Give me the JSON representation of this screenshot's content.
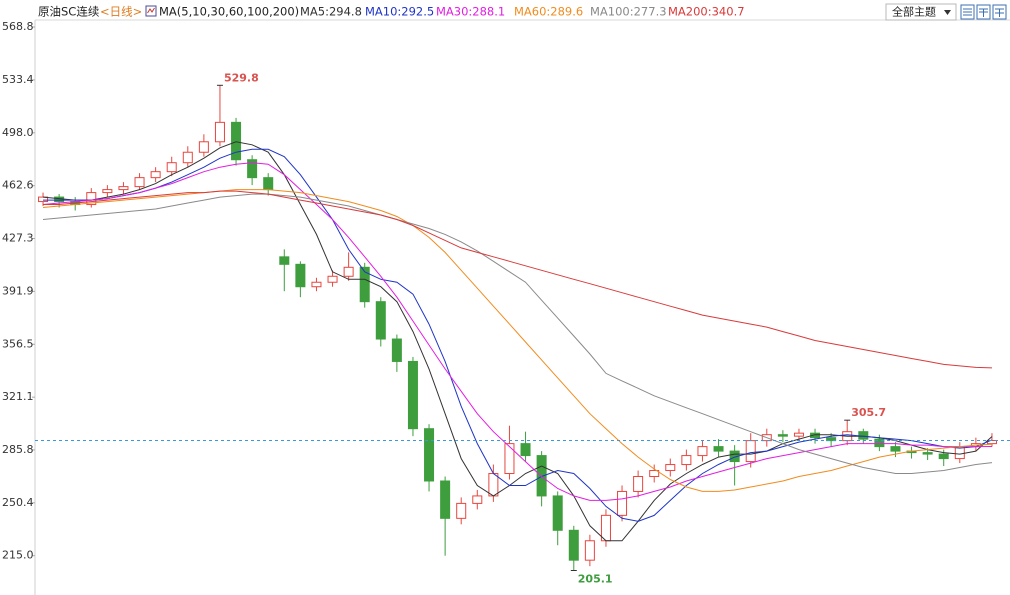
{
  "chart_data": {
    "type": "candlestick",
    "title": "原油SC连续",
    "period": "<日线>",
    "indicator": "MA(5,10,30,60,100,200)",
    "theme_button": "全部主题",
    "up_color": "#e8463f",
    "down_color": "#3e9e3e",
    "ylim": [
      188.7,
      573.5
    ],
    "yticks": [
      568.8,
      533.4,
      {
        "value": 498,
        "label": "498.0"
      },
      462.6,
      427.3,
      391.9,
      356.5,
      321.1,
      285.8,
      250.4,
      {
        "value": 215,
        "label": "215.0"
      }
    ],
    "open": [
      452,
      455,
      452,
      450,
      458,
      460,
      462,
      468,
      472,
      478,
      485,
      492,
      505,
      480,
      468,
      415,
      410,
      395,
      398,
      402,
      408,
      385,
      360,
      345,
      300,
      265,
      240,
      250,
      255,
      270,
      290,
      282,
      255,
      232,
      212,
      225,
      242,
      258,
      268,
      272,
      276,
      282,
      288,
      285,
      278,
      292,
      296,
      295,
      297,
      294,
      292,
      298,
      293,
      288,
      285,
      284,
      283,
      280,
      288,
      290
    ],
    "high": [
      458,
      457,
      455,
      461,
      463,
      465,
      471,
      475,
      482,
      489,
      497,
      529.8,
      508,
      483,
      471,
      420,
      412,
      401,
      406,
      418,
      411,
      388,
      363,
      348,
      303,
      268,
      254,
      259,
      276,
      302,
      298,
      285,
      258,
      235,
      229,
      246,
      262,
      272,
      276,
      280,
      286,
      292,
      293,
      289,
      297,
      300,
      299,
      300,
      300,
      297,
      305.7,
      300,
      296,
      291,
      288,
      287,
      286,
      291,
      294,
      297
    ],
    "low": [
      449,
      448,
      446,
      448,
      455,
      457,
      460,
      465,
      469,
      475,
      482,
      489,
      476,
      463,
      456,
      392,
      388,
      392,
      395,
      399,
      381,
      355,
      338,
      295,
      258,
      215,
      236,
      246,
      251,
      266,
      278,
      248,
      222,
      205.1,
      208,
      221,
      238,
      254,
      264,
      268,
      272,
      278,
      281,
      262,
      274,
      288,
      291,
      292,
      290,
      288,
      289,
      290,
      285,
      281,
      280,
      279,
      275,
      277,
      285,
      288
    ],
    "close": [
      455,
      452,
      450,
      458,
      460,
      462,
      468,
      472,
      478,
      485,
      492,
      505,
      480,
      468,
      460,
      410,
      395,
      398,
      402,
      408,
      385,
      360,
      345,
      300,
      265,
      240,
      250,
      255,
      270,
      290,
      282,
      255,
      232,
      212,
      225,
      242,
      258,
      268,
      272,
      276,
      282,
      288,
      285,
      278,
      292,
      296,
      295,
      297,
      294,
      292,
      298,
      293,
      288,
      285,
      284,
      283,
      280,
      288,
      290,
      292.1
    ],
    "annotations": [
      {
        "text": "529.8",
        "value": 529.8,
        "color": "#d9534f"
      },
      {
        "text": "305.7",
        "value": 305.7,
        "color": "#d9534f"
      },
      {
        "text": "205.1",
        "value": 205.1,
        "color": "#3e9e3e"
      }
    ],
    "series": [
      {
        "name": "MA5:294.8",
        "color": "#333333",
        "values": [
          455,
          454,
          453,
          453,
          455,
          457,
          460,
          464,
          470,
          475,
          481,
          488,
          492,
          490,
          485,
          470,
          450,
          430,
          405,
          400,
          400,
          395,
          385,
          365,
          340,
          310,
          280,
          262,
          255,
          262,
          270,
          275,
          270,
          255,
          235,
          225,
          225,
          238,
          252,
          263,
          270,
          276,
          281,
          283,
          283,
          285,
          290,
          293,
          296,
          296,
          295,
          295,
          294,
          292,
          289,
          286,
          284,
          283,
          285,
          294.8
        ]
      },
      {
        "name": "MA10:292.5",
        "color": "#1f35c8",
        "values": [
          453,
          453,
          453,
          453,
          454,
          456,
          458,
          461,
          465,
          470,
          475,
          481,
          485,
          487,
          487,
          482,
          470,
          455,
          440,
          420,
          405,
          400,
          398,
          390,
          370,
          345,
          315,
          290,
          270,
          262,
          262,
          268,
          272,
          270,
          260,
          248,
          240,
          238,
          242,
          252,
          262,
          270,
          276,
          281,
          284,
          285,
          288,
          291,
          293,
          295,
          296,
          295,
          294,
          293,
          292,
          290,
          288,
          287,
          288,
          292.5
        ]
      },
      {
        "name": "MA30:288.1",
        "color": "#e21ee2",
        "values": [
          450,
          451,
          452,
          453,
          454,
          456,
          458,
          461,
          464,
          468,
          472,
          475,
          477,
          478,
          477,
          470,
          460,
          450,
          440,
          428,
          415,
          402,
          388,
          372,
          356,
          340,
          325,
          310,
          298,
          288,
          278,
          268,
          260,
          255,
          252,
          252,
          253,
          255,
          258,
          261,
          265,
          268,
          271,
          274,
          277,
          280,
          282,
          284,
          286,
          288,
          290,
          290,
          290,
          290,
          289,
          289,
          288,
          288,
          288,
          288.1
        ]
      },
      {
        "name": "MA60:289.6",
        "color": "#f08c1e",
        "values": [
          448,
          449,
          450,
          451,
          452,
          453,
          454,
          455,
          456,
          457,
          458,
          459,
          460,
          460,
          460,
          459,
          458,
          456,
          454,
          452,
          449,
          446,
          442,
          436,
          428,
          418,
          406,
          394,
          382,
          370,
          358,
          346,
          334,
          322,
          310,
          300,
          290,
          281,
          273,
          266,
          261,
          258,
          258,
          259,
          261,
          263,
          265,
          268,
          270,
          272,
          275,
          278,
          281,
          283,
          285,
          286,
          287,
          288,
          289,
          289.6
        ]
      },
      {
        "name": "MA100:277.3",
        "color": "#8a8a8a",
        "values": [
          440,
          441,
          442,
          443,
          444,
          445,
          446,
          447,
          449,
          451,
          453,
          455,
          456,
          457,
          457,
          456,
          455,
          453,
          451,
          449,
          446,
          443,
          440,
          437,
          434,
          430,
          425,
          419,
          412,
          405,
          398,
          386,
          374,
          362,
          350,
          337,
          332,
          327,
          322,
          318,
          314,
          310,
          306,
          302,
          298,
          294,
          290,
          286,
          283,
          280,
          277,
          274,
          272,
          270,
          270,
          271,
          272,
          274,
          276,
          277.3
        ]
      },
      {
        "name": "MA200:340.7",
        "color": "#d93a3a",
        "values": [
          450,
          450,
          451,
          452,
          453,
          454,
          455,
          456,
          457,
          458,
          458,
          459,
          459,
          458,
          457,
          455,
          453,
          451,
          449,
          447,
          445,
          443,
          440,
          436,
          431,
          426,
          421,
          418,
          415,
          412,
          409,
          406,
          403,
          400,
          397,
          394,
          391,
          388,
          385,
          382,
          379,
          376,
          374,
          372,
          370,
          368,
          365,
          362,
          359,
          357,
          355,
          353,
          351,
          349,
          347,
          345,
          343,
          342,
          341,
          340.7
        ]
      }
    ]
  }
}
